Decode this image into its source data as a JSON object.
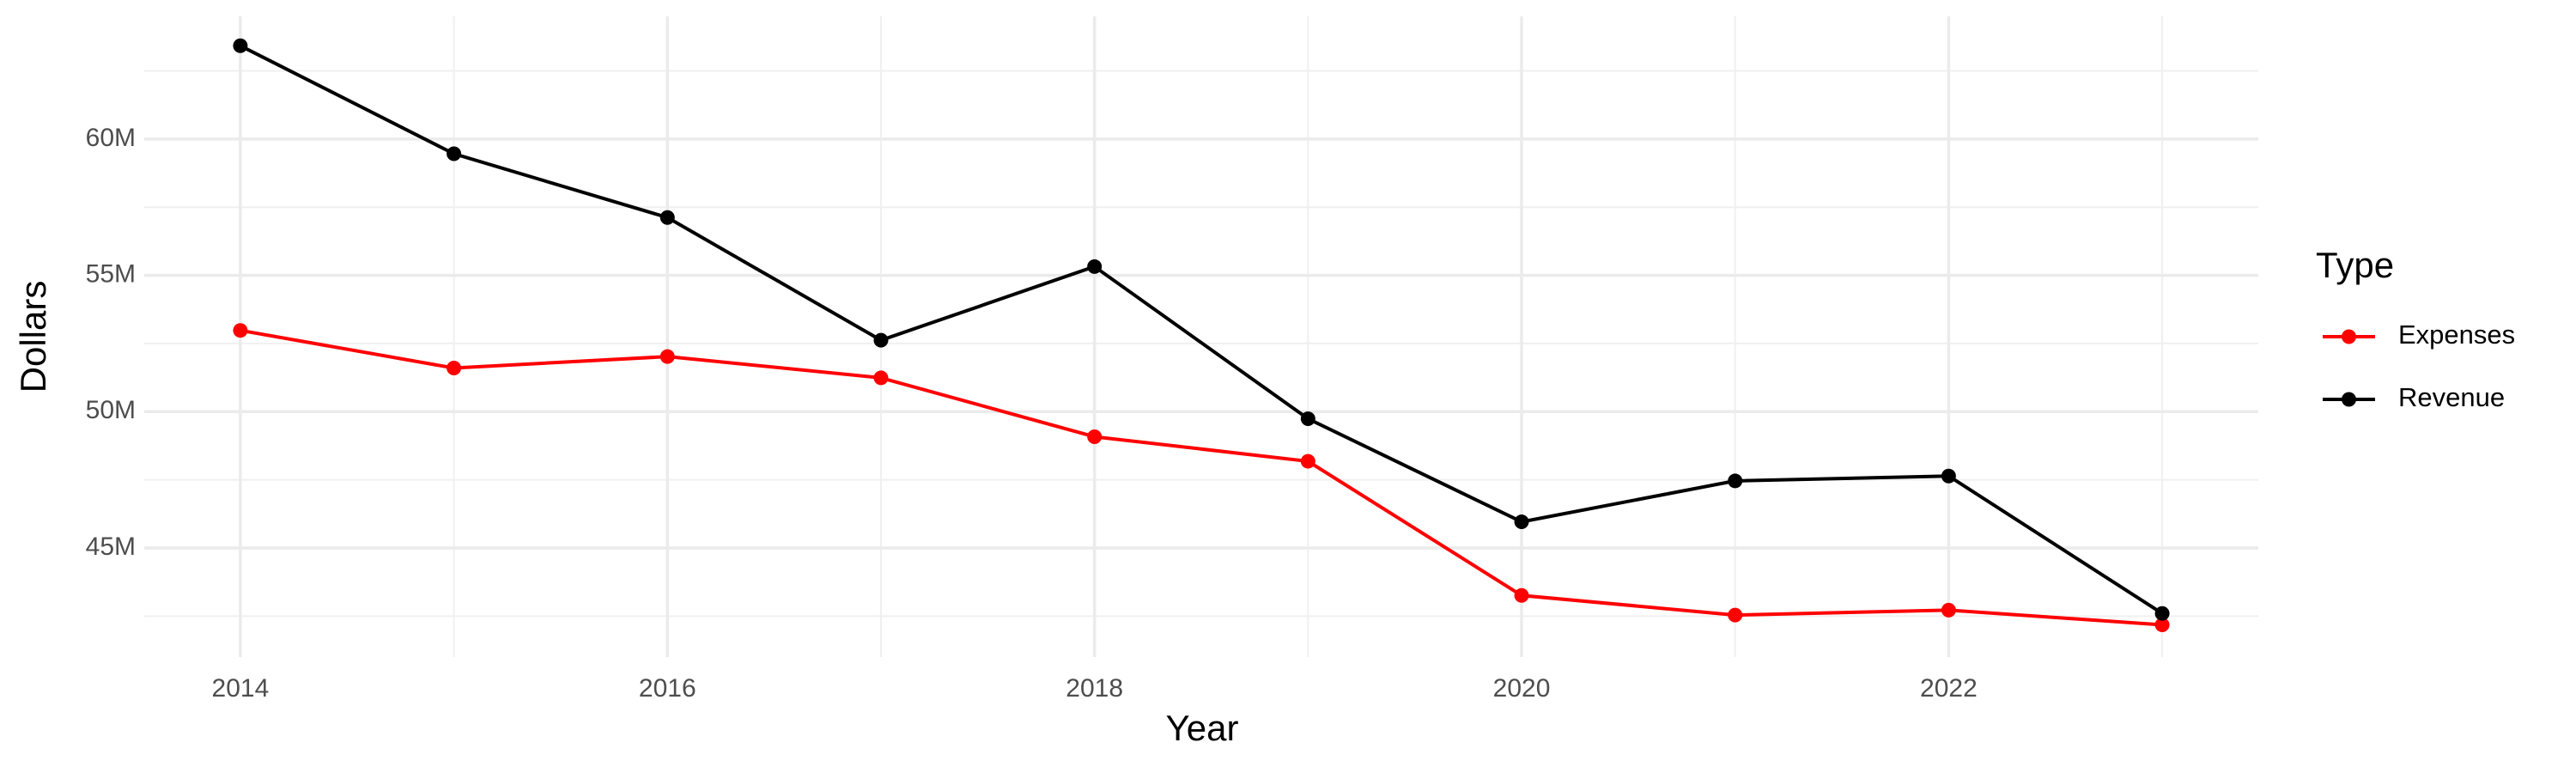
{
  "chart_data": {
    "type": "line",
    "x_label": "Year",
    "y_label": "Dollars",
    "x": [
      2014,
      2015,
      2016,
      2017,
      2018,
      2019,
      2020,
      2021,
      2022,
      2023
    ],
    "series": [
      {
        "name": "Expenses",
        "color": "#ff0000",
        "values": [
          52980000,
          51600000,
          52020000,
          51240000,
          49080000,
          48180000,
          43260000,
          42540000,
          42720000,
          42180000
        ]
      },
      {
        "name": "Revenue",
        "color": "#000000",
        "values": [
          63420000,
          59460000,
          57120000,
          52620000,
          55320000,
          49740000,
          45960000,
          47460000,
          47640000,
          42600000
        ]
      }
    ],
    "xlim": [
      2013.55,
      2023.45
    ],
    "xticks": [
      2014,
      2016,
      2018,
      2020,
      2022
    ],
    "ylim": [
      41000000,
      64500000
    ],
    "yticks": [
      {
        "value": 45000000,
        "label": "45M"
      },
      {
        "value": 50000000,
        "label": "50M"
      },
      {
        "value": 55000000,
        "label": "55M"
      },
      {
        "value": 60000000,
        "label": "60M"
      }
    ],
    "grid": true,
    "legend_title": "Type",
    "legend_position": "right"
  }
}
